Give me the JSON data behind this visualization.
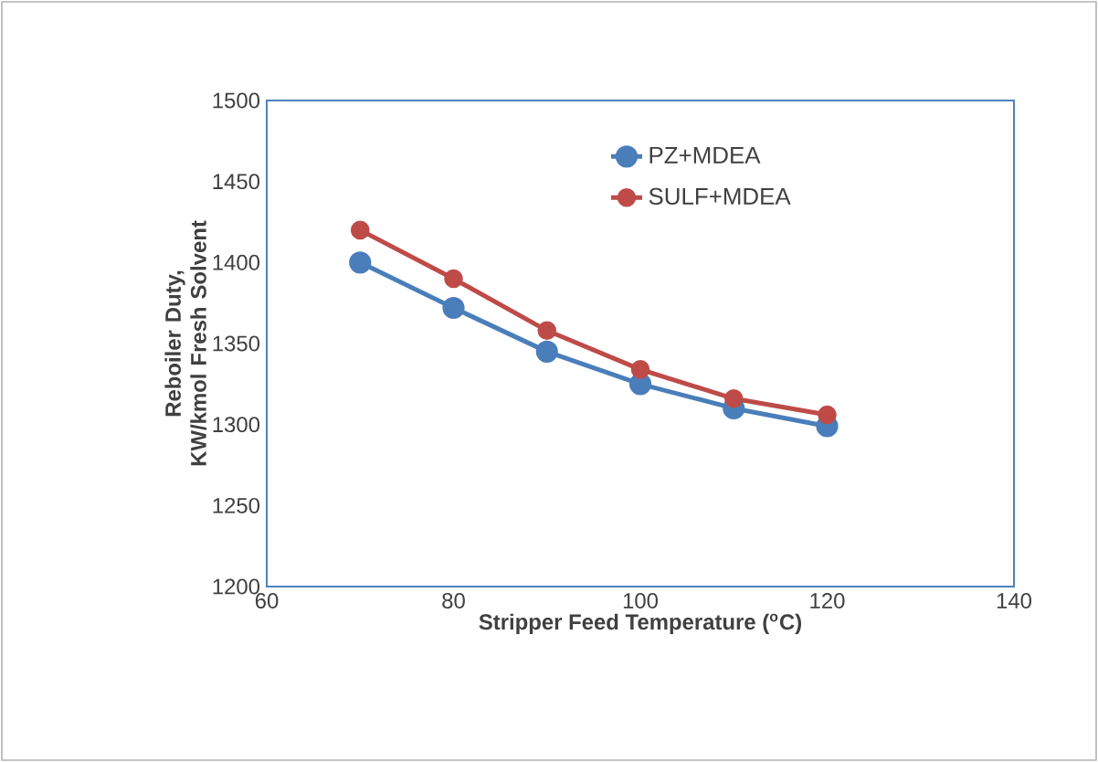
{
  "chart_data": {
    "type": "line",
    "xlabel": "Stripper Feed Temperature ($^{o}$C)",
    "ylabel": "Reboiler Duty, KW/kmol Fresh Solvent",
    "x": [
      70,
      80,
      90,
      100,
      110,
      120
    ],
    "series": [
      {
        "name": "PZ+MDEA",
        "color": "#4a7ebb",
        "values": [
          1400,
          1372,
          1345,
          1325,
          1310,
          1299
        ]
      },
      {
        "name": "SULF+MDEA",
        "color": "#be4b48",
        "values": [
          1420,
          1390,
          1358,
          1334,
          1316,
          1306
        ]
      }
    ],
    "xlim": [
      60,
      140
    ],
    "xticks": [
      60,
      80,
      100,
      120,
      140
    ],
    "ylim": [
      1200,
      1500
    ],
    "yticks": [
      1200,
      1250,
      1300,
      1350,
      1400,
      1450,
      1500
    ],
    "grid": false,
    "legend": "top right",
    "marker": "circle",
    "line_style": "solid"
  }
}
